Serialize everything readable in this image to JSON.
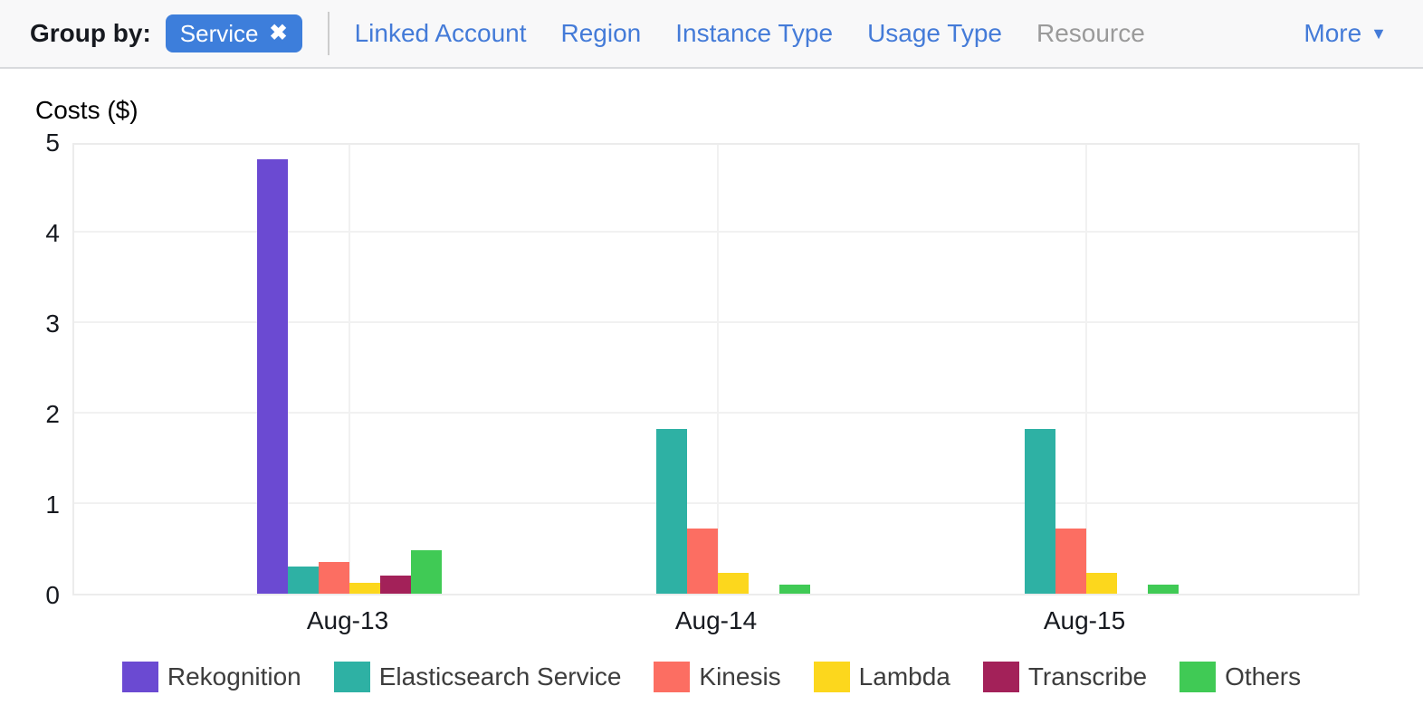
{
  "toolbar": {
    "group_by_label": "Group by:",
    "chip": {
      "label": "Service",
      "close_icon": "✖",
      "color": "#3d7edb",
      "text_color": "#ffffff"
    },
    "links": [
      {
        "label": "Linked Account",
        "enabled": true
      },
      {
        "label": "Region",
        "enabled": true
      },
      {
        "label": "Instance Type",
        "enabled": true
      },
      {
        "label": "Usage Type",
        "enabled": true
      },
      {
        "label": "Resource",
        "enabled": false
      }
    ],
    "more_label": "More",
    "more_icon": "▼",
    "link_color": "#447bd8",
    "disabled_color": "#9a9a9a"
  },
  "chart_data": {
    "type": "bar",
    "title": "Costs ($)",
    "categories": [
      "Aug-13",
      "Aug-14",
      "Aug-15"
    ],
    "series": [
      {
        "name": "Rekognition",
        "color": "#6b4ad2",
        "values": [
          4.8,
          0,
          0
        ]
      },
      {
        "name": "Elasticsearch Service",
        "color": "#2eb1a4",
        "values": [
          0.3,
          1.82,
          1.82
        ]
      },
      {
        "name": "Kinesis",
        "color": "#fc6e62",
        "values": [
          0.35,
          0.72,
          0.72
        ]
      },
      {
        "name": "Lambda",
        "color": "#fcd71d",
        "values": [
          0.12,
          0.23,
          0.23
        ]
      },
      {
        "name": "Transcribe",
        "color": "#a32159",
        "values": [
          0.2,
          0,
          0
        ]
      },
      {
        "name": "Others",
        "color": "#40ca55",
        "values": [
          0.48,
          0.1,
          0.1
        ]
      }
    ],
    "xlabel": "",
    "ylabel": "Costs ($)",
    "ylim": [
      0,
      5
    ],
    "yticks": [
      0,
      1,
      2,
      3,
      4,
      5
    ],
    "grid": true,
    "legend_position": "bottom"
  }
}
